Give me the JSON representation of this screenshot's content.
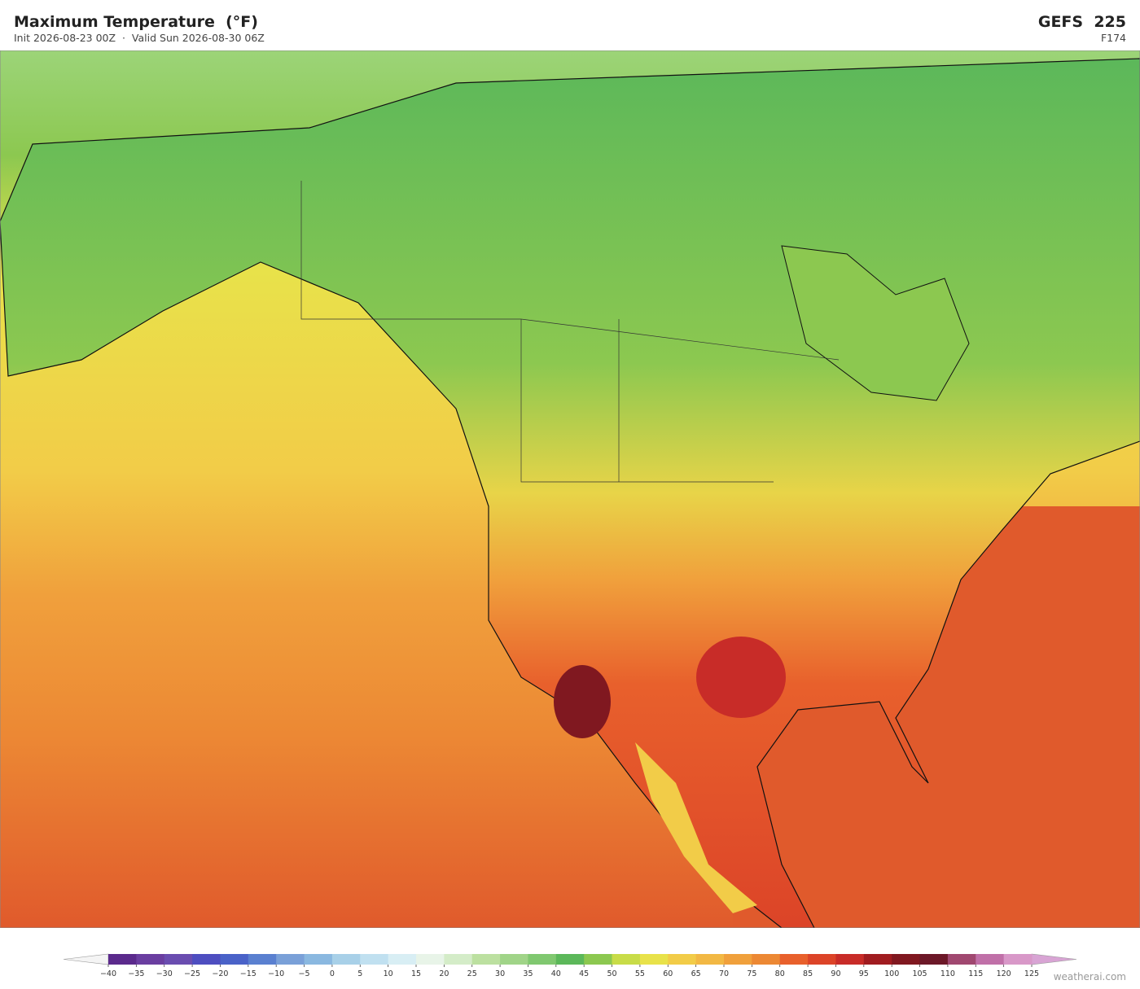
{
  "header": {
    "title": "Maximum Temperature  (°F)",
    "subtitle": "Init 2026-08-23 00Z  ·  Valid Sun 2026-08-30 06Z",
    "model": "GEFS  225",
    "forecast_hour": "F174"
  },
  "colorbar": {
    "ticks": [
      {
        "value": -40,
        "label": "−40"
      },
      {
        "value": -35,
        "label": "−35"
      },
      {
        "value": -30,
        "label": "−30"
      },
      {
        "value": -25,
        "label": "−25"
      },
      {
        "value": -20,
        "label": "−20"
      },
      {
        "value": -15,
        "label": "−15"
      },
      {
        "value": -10,
        "label": "−10"
      },
      {
        "value": -5,
        "label": "−5"
      },
      0,
      5,
      10,
      15,
      20,
      25,
      30,
      35,
      40,
      45,
      50,
      55,
      60,
      65,
      70,
      75,
      80,
      85,
      90,
      95,
      100,
      105,
      110,
      115,
      120,
      125
    ],
    "colors": [
      "#f4f4f4",
      "#5b2a8c",
      "#6a3ea0",
      "#6a4db0",
      "#4e4ec0",
      "#4a62c8",
      "#5a80d0",
      "#7aa0d8",
      "#8ab8e0",
      "#a8d0e8",
      "#c0e0f0",
      "#d8eef4",
      "#e8f4e8",
      "#d4ecc8",
      "#bce0a0",
      "#a0d488",
      "#80c870",
      "#5cb85a",
      "#8cc850",
      "#c8dc48",
      "#e8e24a",
      "#f2cc48",
      "#f2b844",
      "#f0a03c",
      "#ec8834",
      "#e8602c",
      "#dc4428",
      "#c82c28",
      "#a01c20",
      "#801820",
      "#6c1828",
      "#a04870",
      "#c070a8",
      "#d898c8",
      "#d8a4d4"
    ]
  },
  "credit": "weatherai.com"
}
